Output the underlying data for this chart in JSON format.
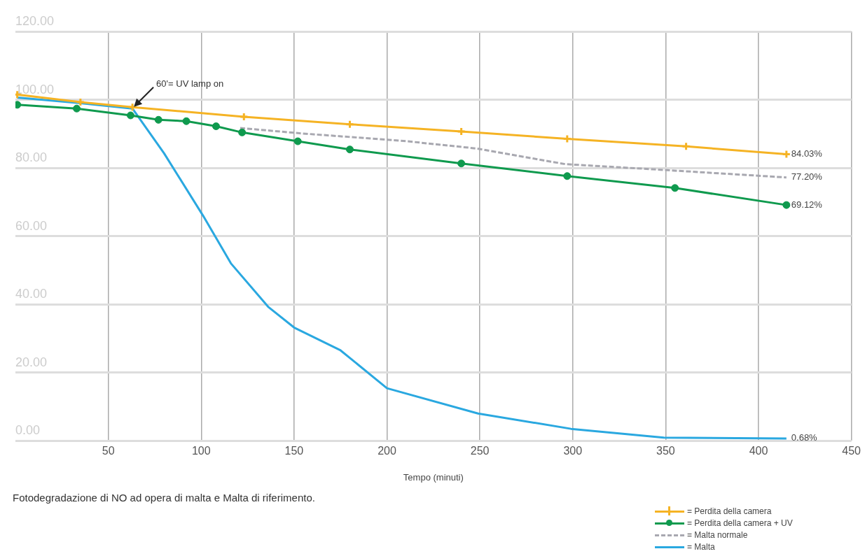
{
  "chart_data": {
    "type": "line",
    "xlabel": "Tempo (minuti)",
    "xlim": [
      0,
      450
    ],
    "xticks": [
      50,
      100,
      150,
      200,
      250,
      300,
      350,
      400,
      450
    ],
    "ylim": [
      0,
      120
    ],
    "yticks": [
      {
        "value": 0,
        "label": "0.00"
      },
      {
        "value": 20,
        "label": "20.00"
      },
      {
        "value": 40,
        "label": "40.00"
      },
      {
        "value": 60,
        "label": "60.00"
      },
      {
        "value": 80,
        "label": "80.00"
      },
      {
        "value": 100,
        "label": "100.00"
      },
      {
        "value": 120,
        "label": "120.00"
      }
    ],
    "grid": true,
    "legend": "bottom right",
    "series": [
      {
        "name": "= Perdita della camera",
        "color": "#f5b324",
        "marker": "cross",
        "line_style": "solid",
        "x": [
          1,
          35,
          63,
          123,
          180,
          240,
          297,
          361,
          415
        ],
        "values": [
          101.5,
          99.3,
          97.8,
          95,
          92.8,
          90.7,
          88.5,
          86.3,
          84.03
        ],
        "value_labels": [
          null,
          null,
          null,
          null,
          null,
          null,
          null,
          null,
          "84.03%"
        ]
      },
      {
        "name": "= Perdita della camera + UV",
        "color": "#0f9a4e",
        "marker": "circle",
        "line_style": "solid",
        "x": [
          1,
          33,
          62,
          77,
          92,
          108,
          122,
          152,
          180,
          240,
          297,
          355,
          415
        ],
        "values": [
          98.5,
          97.4,
          95.4,
          94.1,
          93.7,
          92.2,
          90.4,
          87.8,
          85.4,
          81.3,
          77.6,
          74.1,
          69.12
        ],
        "value_labels": [
          null,
          null,
          null,
          null,
          null,
          null,
          null,
          null,
          null,
          null,
          null,
          null,
          "69.12%"
        ]
      },
      {
        "name": "= Malta normale",
        "color": "#a8a8b0",
        "marker": "none",
        "line_style": "dashed",
        "x": [
          121,
          152,
          211,
          248,
          296,
          343,
          415
        ],
        "values": [
          91.7,
          90.2,
          87.8,
          85.7,
          81.1,
          79.6,
          77.2
        ],
        "value_labels": [
          null,
          null,
          null,
          null,
          null,
          null,
          "77.20%"
        ]
      },
      {
        "name": "= Malta",
        "color": "#2aa8e0",
        "marker": "none",
        "line_style": "solid",
        "x": [
          1,
          35,
          63,
          80,
          101,
          116,
          136,
          150,
          175,
          200,
          249,
          299,
          349,
          415
        ],
        "values": [
          100.6,
          99,
          97.4,
          84.3,
          66,
          52,
          39.3,
          33.2,
          26.5,
          15.4,
          8,
          3.5,
          0.9,
          0.68
        ],
        "value_labels": [
          null,
          null,
          null,
          null,
          null,
          null,
          null,
          null,
          null,
          null,
          null,
          null,
          null,
          "0.68%"
        ]
      }
    ],
    "annotations": [
      {
        "text": "60'= UV lamp on",
        "x": 63,
        "y": 97.5
      },
      "Fotodegradazione di NO ad opera di malta e Malta di riferimento."
    ]
  }
}
